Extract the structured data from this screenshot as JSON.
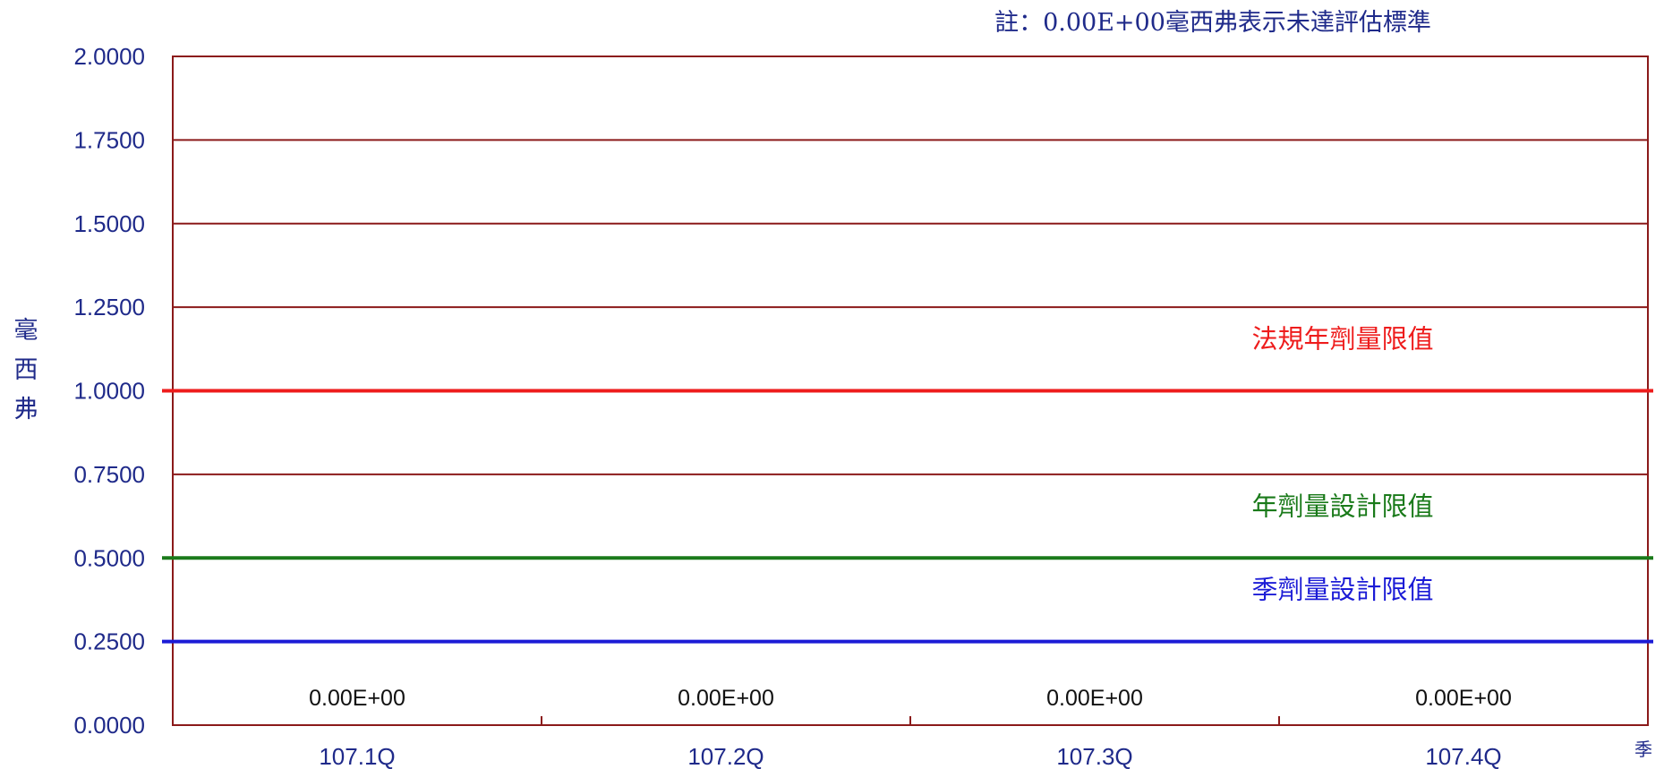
{
  "chart_data": {
    "type": "bar",
    "note": "註：0.00E+00毫西弗表示未達評估標準",
    "ylabel": "毫西弗",
    "xlabel": "季",
    "ylim": [
      0,
      2.0
    ],
    "yticks": [
      "0.0000",
      "0.2500",
      "0.5000",
      "0.7500",
      "1.0000",
      "1.2500",
      "1.5000",
      "1.7500",
      "2.0000"
    ],
    "categories": [
      "107.1Q",
      "107.2Q",
      "107.3Q",
      "107.4Q"
    ],
    "values": [
      0,
      0,
      0,
      0
    ],
    "value_labels": [
      "0.00E+00",
      "0.00E+00",
      "0.00E+00",
      "0.00E+00"
    ],
    "grid": true,
    "reference_lines": [
      {
        "label": "法規年劑量限值",
        "value": 1.0,
        "color": "#ee1c1c"
      },
      {
        "label": "年劑量設計限值",
        "value": 0.5,
        "color": "#1a7a1a"
      },
      {
        "label": "季劑量設計限值",
        "value": 0.25,
        "color": "#1b1bd6"
      }
    ],
    "colors": {
      "frame": "#8b1a1a",
      "text": "#1f2a8a"
    }
  }
}
